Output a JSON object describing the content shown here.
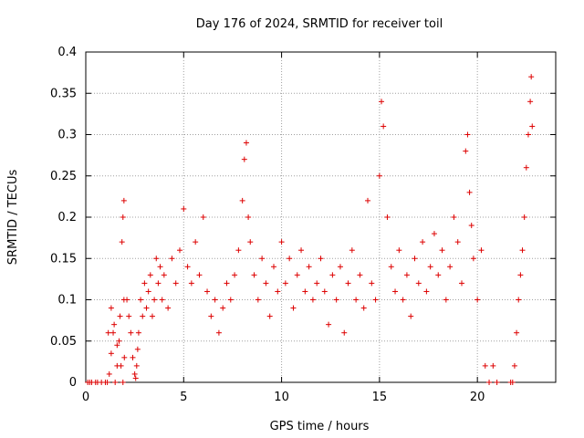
{
  "chart_data": {
    "type": "scatter",
    "title": "Day 176 of 2024, SRMTID for receiver toil",
    "xlabel": "GPS time / hours",
    "ylabel": "SRMTID / TECUs",
    "xlim": [
      0,
      24
    ],
    "ylim": [
      0,
      0.4
    ],
    "x_ticks": [
      0,
      5,
      10,
      15,
      20
    ],
    "x_tick_labels": [
      "0",
      "5",
      "10",
      "15",
      "20"
    ],
    "y_ticks": [
      0,
      0.05,
      0.1,
      0.15,
      0.2,
      0.25,
      0.3,
      0.35,
      0.4
    ],
    "y_tick_labels": [
      "0",
      "0.05",
      "0.1",
      "0.15",
      "0.2",
      "0.25",
      "0.3",
      "0.35",
      "0.4"
    ],
    "grid": true,
    "marker": "+",
    "marker_color": "#dd0000",
    "series": [
      {
        "x": [
          0.1,
          0.2,
          0.3,
          0.5,
          0.6,
          0.8,
          1.0,
          1.1,
          1.2,
          1.3,
          1.4,
          1.5,
          1.6,
          1.7,
          1.8,
          1.9,
          1.15,
          1.3,
          1.45,
          1.6,
          1.75,
          1.85,
          1.9,
          1.95,
          1.95,
          1.97,
          2.1,
          2.2,
          2.3,
          2.4,
          2.5,
          2.55,
          2.6,
          2.65,
          2.7,
          2.8,
          2.9,
          3.0,
          3.1,
          3.2,
          3.3,
          3.4,
          3.5,
          3.6,
          3.7,
          3.8,
          3.9,
          4.0,
          4.2,
          4.4,
          4.6,
          4.8,
          5.0,
          5.2,
          5.4,
          5.6,
          5.8,
          6.0,
          6.2,
          6.4,
          6.6,
          6.8,
          7.0,
          7.2,
          7.4,
          7.6,
          7.8,
          8.0,
          8.1,
          8.2,
          8.3,
          8.4,
          8.6,
          8.8,
          9.0,
          9.2,
          9.4,
          9.6,
          9.8,
          10.0,
          10.2,
          10.4,
          10.6,
          10.8,
          11.0,
          11.2,
          11.4,
          11.6,
          11.8,
          12.0,
          12.2,
          12.4,
          12.6,
          12.8,
          13.0,
          13.2,
          13.4,
          13.6,
          13.8,
          14.0,
          14.2,
          14.4,
          14.6,
          14.8,
          15.0,
          15.1,
          15.2,
          15.4,
          15.6,
          15.8,
          16.0,
          16.2,
          16.4,
          16.6,
          16.8,
          17.0,
          17.2,
          17.4,
          17.6,
          17.8,
          18.0,
          18.2,
          18.4,
          18.6,
          18.8,
          19.0,
          19.2,
          19.4,
          19.5,
          19.6,
          19.7,
          19.8,
          20.0,
          20.2,
          20.4,
          20.6,
          20.8,
          21.0,
          21.7,
          21.8,
          21.9,
          22.0,
          22.1,
          22.2,
          22.3,
          22.4,
          22.5,
          22.6,
          22.7,
          22.75,
          22.8
        ],
        "y": [
          0,
          0,
          0,
          0,
          0,
          0,
          0,
          0,
          0.01,
          0.09,
          0.06,
          0,
          0.02,
          0.05,
          0.02,
          0,
          0.06,
          0.035,
          0.07,
          0.045,
          0.08,
          0.17,
          0.2,
          0.22,
          0.1,
          0.03,
          0.1,
          0.08,
          0.06,
          0.03,
          0.01,
          0.005,
          0.02,
          0.04,
          0.06,
          0.1,
          0.08,
          0.12,
          0.09,
          0.11,
          0.13,
          0.08,
          0.1,
          0.15,
          0.12,
          0.14,
          0.1,
          0.13,
          0.09,
          0.15,
          0.12,
          0.16,
          0.21,
          0.14,
          0.12,
          0.17,
          0.13,
          0.2,
          0.11,
          0.08,
          0.1,
          0.06,
          0.09,
          0.12,
          0.1,
          0.13,
          0.16,
          0.22,
          0.27,
          0.29,
          0.2,
          0.17,
          0.13,
          0.1,
          0.15,
          0.12,
          0.08,
          0.14,
          0.11,
          0.17,
          0.12,
          0.15,
          0.09,
          0.13,
          0.16,
          0.11,
          0.14,
          0.1,
          0.12,
          0.15,
          0.11,
          0.07,
          0.13,
          0.1,
          0.14,
          0.06,
          0.12,
          0.16,
          0.1,
          0.13,
          0.09,
          0.22,
          0.12,
          0.1,
          0.25,
          0.34,
          0.31,
          0.2,
          0.14,
          0.11,
          0.16,
          0.1,
          0.13,
          0.08,
          0.15,
          0.12,
          0.17,
          0.11,
          0.14,
          0.18,
          0.13,
          0.16,
          0.1,
          0.14,
          0.2,
          0.17,
          0.12,
          0.28,
          0.3,
          0.23,
          0.19,
          0.15,
          0.1,
          0.16,
          0.02,
          0.0,
          0.02,
          0.0,
          0.0,
          0.0,
          0.02,
          0.06,
          0.1,
          0.13,
          0.16,
          0.2,
          0.26,
          0.3,
          0.34,
          0.37,
          0.31
        ]
      }
    ]
  }
}
